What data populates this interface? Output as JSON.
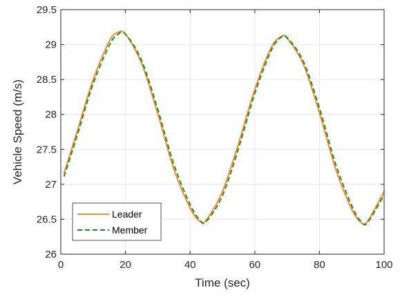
{
  "chart_data": {
    "type": "line",
    "xlabel": "Time (sec)",
    "ylabel": "Vehicle Speed (m/s)",
    "xlim": [
      0,
      100
    ],
    "ylim": [
      26,
      29.5
    ],
    "xticks": [
      0,
      20,
      40,
      60,
      80,
      100
    ],
    "xtick_labels": [
      "0",
      "20",
      "40",
      "60",
      "80",
      "100"
    ],
    "yticks": [
      26,
      26.5,
      27,
      27.5,
      28,
      28.5,
      29,
      29.5
    ],
    "ytick_labels": [
      "26",
      "26.5",
      "27",
      "27.5",
      "28",
      "28.5",
      "29",
      "29.5"
    ],
    "grid": true,
    "legend_position": "bottom-left",
    "x": [
      1,
      5,
      10,
      15,
      17.5,
      20,
      25,
      30,
      35,
      40,
      43,
      45,
      50,
      55,
      60,
      65,
      68,
      70,
      75,
      80,
      85,
      90,
      93,
      95,
      100
    ],
    "series": [
      {
        "name": "Leader",
        "color": "#f28e2b",
        "style": "solid",
        "values": [
          27.16,
          27.75,
          28.5,
          29.05,
          29.17,
          29.15,
          28.73,
          28.01,
          27.21,
          26.66,
          26.47,
          26.49,
          26.9,
          27.59,
          28.36,
          28.95,
          29.11,
          29.09,
          28.72,
          28.02,
          27.22,
          26.64,
          26.45,
          26.48,
          26.9
        ]
      },
      {
        "name": "Member",
        "color": "#1f8a2a",
        "style": "dashed",
        "values": [
          27.11,
          27.69,
          28.44,
          28.99,
          29.14,
          29.15,
          28.77,
          28.07,
          27.28,
          26.71,
          26.49,
          26.47,
          26.84,
          27.52,
          28.3,
          28.91,
          29.1,
          29.1,
          28.76,
          28.09,
          27.29,
          26.69,
          26.46,
          26.46,
          26.85
        ]
      }
    ]
  }
}
